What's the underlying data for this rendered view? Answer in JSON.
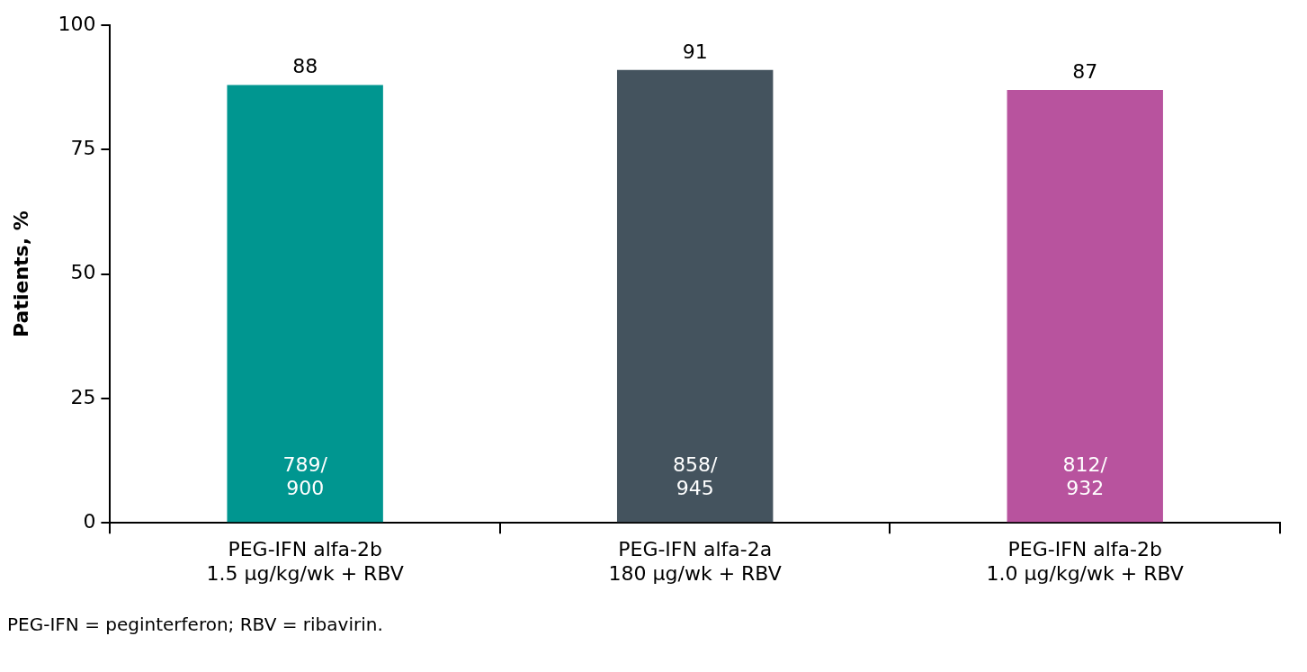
{
  "chart_data": {
    "type": "bar",
    "ylabel": "Patients, %",
    "categories": [
      "PEG-IFN alfa-2b\n1.5 µg/kg/wk + RBV",
      "PEG-IFN alfa-2a\n180 µg/wk + RBV",
      "PEG-IFN alfa-2b\n1.0 µg/kg/wk + RBV"
    ],
    "values": [
      88,
      91,
      87
    ],
    "colors": [
      "#009690",
      "#44535e",
      "#b8539e"
    ],
    "ylim": [
      0,
      100
    ],
    "yticks": [
      0,
      25,
      50,
      75,
      100
    ],
    "grid": false,
    "legend": false,
    "data_labels": true,
    "annotations": [
      "789/\n900",
      "858/\n945",
      "812/\n932",
      "PEG-IFN = peginterferon; RBV = ribavirin."
    ]
  }
}
